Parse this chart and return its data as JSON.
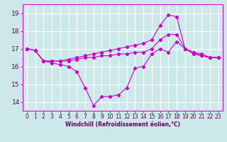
{
  "background_color": "#cce8e8",
  "grid_color": "#ffffff",
  "line_color": "#cc00cc",
  "xlabel": "Windchill (Refroidissement éolien,°C)",
  "xlabel_color": "#660066",
  "tick_color": "#660066",
  "ylim": [
    13.5,
    19.5
  ],
  "xlim": [
    -0.5,
    23.5
  ],
  "yticks": [
    14,
    15,
    16,
    17,
    18,
    19
  ],
  "xticks": [
    0,
    1,
    2,
    3,
    4,
    5,
    6,
    7,
    8,
    9,
    10,
    11,
    12,
    13,
    14,
    15,
    16,
    17,
    18,
    19,
    20,
    21,
    22,
    23
  ],
  "series1": [
    17.0,
    16.9,
    16.3,
    16.2,
    16.1,
    16.0,
    15.7,
    14.8,
    13.8,
    14.3,
    14.3,
    14.4,
    14.8,
    15.9,
    16.0,
    16.7,
    17.0,
    16.8,
    17.4,
    17.0,
    16.7,
    16.6,
    16.5,
    16.5
  ],
  "series2": [
    17.0,
    16.9,
    16.3,
    16.3,
    16.3,
    16.3,
    16.4,
    16.5,
    16.5,
    16.6,
    16.6,
    16.7,
    16.7,
    16.8,
    16.8,
    17.0,
    17.5,
    17.8,
    17.8,
    17.0,
    16.8,
    16.6,
    16.5,
    16.5
  ],
  "series3": [
    17.0,
    16.9,
    16.3,
    16.3,
    16.3,
    16.4,
    16.5,
    16.6,
    16.7,
    16.8,
    16.9,
    17.0,
    17.1,
    17.2,
    17.3,
    17.5,
    18.3,
    18.9,
    18.8,
    17.0,
    16.8,
    16.7,
    16.5,
    16.5
  ]
}
